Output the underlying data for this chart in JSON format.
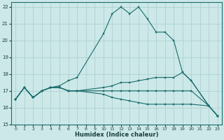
{
  "title": "",
  "xlabel": "Humidex (Indice chaleur)",
  "xlim": [
    -0.5,
    23.5
  ],
  "ylim": [
    15,
    22.3
  ],
  "yticks": [
    15,
    16,
    17,
    18,
    19,
    20,
    21,
    22
  ],
  "xticks": [
    0,
    1,
    2,
    3,
    4,
    5,
    6,
    7,
    8,
    9,
    10,
    11,
    12,
    13,
    14,
    15,
    16,
    17,
    18,
    19,
    20,
    21,
    22,
    23
  ],
  "bg_color": "#cce8e8",
  "grid_color": "#aacccc",
  "line_color": "#1a6b6b",
  "line0_x": [
    0,
    1,
    2,
    3,
    4,
    5,
    6,
    7,
    10,
    11,
    12,
    13,
    14,
    15,
    16,
    17,
    18,
    19,
    20,
    22,
    23
  ],
  "line0_y": [
    16.5,
    17.2,
    16.6,
    17.0,
    17.2,
    17.3,
    17.6,
    17.8,
    20.4,
    21.6,
    22.0,
    21.6,
    22.0,
    21.3,
    20.5,
    20.5,
    20.0,
    18.1,
    17.6,
    16.1,
    15.5
  ],
  "line1_x": [
    0,
    1,
    2,
    3,
    4,
    5,
    6,
    7,
    10,
    11,
    12,
    13,
    14,
    15,
    16,
    17,
    18,
    19,
    20,
    22,
    23
  ],
  "line1_y": [
    16.5,
    17.2,
    16.6,
    17.0,
    17.2,
    17.2,
    17.0,
    17.0,
    17.2,
    17.3,
    17.5,
    17.5,
    17.6,
    17.7,
    17.8,
    17.8,
    17.8,
    18.1,
    17.6,
    16.1,
    15.5
  ],
  "line2_x": [
    0,
    1,
    2,
    3,
    4,
    5,
    6,
    7,
    10,
    11,
    12,
    13,
    14,
    15,
    16,
    17,
    18,
    19,
    20,
    22,
    23
  ],
  "line2_y": [
    16.5,
    17.2,
    16.6,
    17.0,
    17.2,
    17.2,
    17.0,
    17.0,
    17.0,
    17.0,
    17.0,
    17.0,
    17.0,
    17.0,
    17.0,
    17.0,
    17.0,
    17.0,
    17.0,
    16.1,
    15.5
  ],
  "line3_x": [
    0,
    1,
    2,
    3,
    4,
    5,
    6,
    7,
    10,
    11,
    12,
    13,
    14,
    15,
    16,
    17,
    18,
    19,
    20,
    22,
    23
  ],
  "line3_y": [
    16.5,
    17.2,
    16.6,
    17.0,
    17.2,
    17.2,
    17.0,
    17.0,
    16.8,
    16.6,
    16.5,
    16.4,
    16.3,
    16.2,
    16.2,
    16.2,
    16.2,
    16.2,
    16.2,
    16.1,
    15.5
  ]
}
